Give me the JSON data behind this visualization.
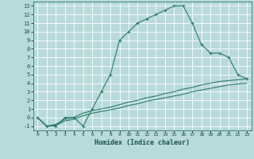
{
  "xlabel": "Humidex (Indice chaleur)",
  "xlim": [
    -0.5,
    23.5
  ],
  "ylim": [
    -1.5,
    13.5
  ],
  "xticks": [
    0,
    1,
    2,
    3,
    4,
    5,
    6,
    7,
    8,
    9,
    10,
    11,
    12,
    13,
    14,
    15,
    16,
    17,
    18,
    19,
    20,
    21,
    22,
    23
  ],
  "yticks": [
    -1,
    0,
    1,
    2,
    3,
    4,
    5,
    6,
    7,
    8,
    9,
    10,
    11,
    12,
    13
  ],
  "bg_color": "#b8dada",
  "line_color": "#2a7a6a",
  "grid_color": "#ffffff",
  "line1_x": [
    0,
    1,
    2,
    3,
    4,
    5,
    6,
    7,
    8,
    9,
    10,
    11,
    12,
    13,
    14,
    15,
    16,
    17,
    18,
    19,
    20,
    21,
    22,
    23
  ],
  "line1_y": [
    0,
    -1,
    -1,
    0,
    0,
    -1,
    1,
    3,
    5,
    9,
    10,
    11,
    11.5,
    12,
    12.5,
    13,
    13,
    11,
    8.5,
    7.5,
    7.5,
    7,
    5,
    4.5
  ],
  "line2_x": [
    0,
    1,
    2,
    3,
    4,
    5,
    6,
    7,
    8,
    9,
    10,
    11,
    12,
    13,
    14,
    15,
    16,
    17,
    18,
    19,
    20,
    21,
    22,
    23
  ],
  "line2_y": [
    0,
    -1,
    -0.8,
    -0.2,
    0.0,
    0.5,
    0.8,
    1.0,
    1.2,
    1.5,
    1.8,
    2.0,
    2.3,
    2.5,
    2.8,
    3.0,
    3.3,
    3.5,
    3.8,
    4.0,
    4.2,
    4.3,
    4.4,
    4.5
  ],
  "line3_x": [
    0,
    1,
    2,
    3,
    4,
    5,
    6,
    7,
    8,
    9,
    10,
    11,
    12,
    13,
    14,
    15,
    16,
    17,
    18,
    19,
    20,
    21,
    22,
    23
  ],
  "line3_y": [
    0,
    -1,
    -0.9,
    -0.4,
    -0.2,
    0.2,
    0.5,
    0.7,
    0.9,
    1.1,
    1.4,
    1.6,
    1.9,
    2.1,
    2.3,
    2.5,
    2.7,
    3.0,
    3.2,
    3.4,
    3.6,
    3.8,
    3.9,
    4.0
  ]
}
